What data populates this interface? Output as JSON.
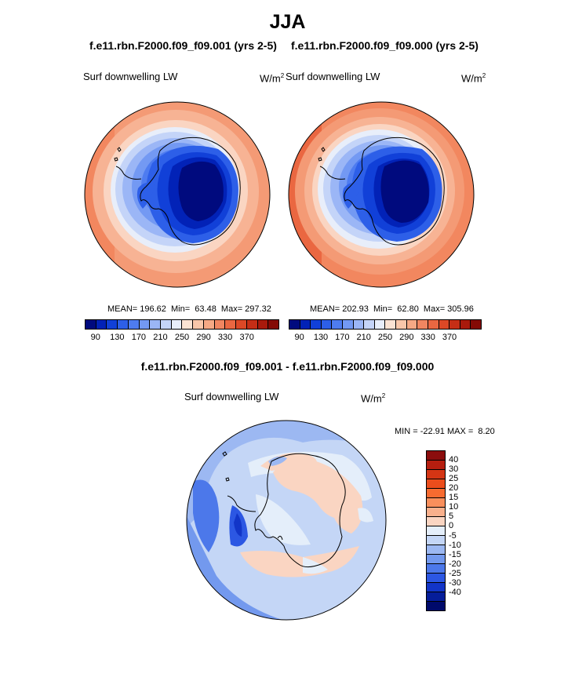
{
  "figure": {
    "season": "JJA",
    "panels": [
      {
        "title": "f.e11.rbn.F2000.f09_f09.001 (yrs 2-5)",
        "variable": "Surf downwelling LW",
        "units_base": "W/m",
        "units_exp": "2",
        "stats": "MEAN= 196.62  Min=  63.48  Max= 297.32"
      },
      {
        "title": "f.e11.rbn.F2000.f09_f09.000 (yrs 2-5)",
        "variable": "Surf downwelling LW",
        "units_base": "W/m",
        "units_exp": "2",
        "stats": "MEAN= 202.93  Min=  62.80  Max= 305.96"
      }
    ],
    "difference": {
      "title": "f.e11.rbn.F2000.f09_f09.001 - f.e11.rbn.F2000.f09_f09.000",
      "variable": "Surf downwelling LW",
      "units_base": "W/m",
      "units_exp": "2",
      "stats": "MIN = -22.91 MAX =  8.20"
    },
    "abs_colorbar": {
      "colors": [
        "#000a7e",
        "#0222b7",
        "#1140d8",
        "#2d5fe8",
        "#4e7cf0",
        "#7399f3",
        "#9bb6f6",
        "#c4d4f8",
        "#e8eefa",
        "#fbe3d3",
        "#f9c7aa",
        "#f6a985",
        "#f18661",
        "#ea6741",
        "#dc4826",
        "#c52e16",
        "#a91a0c",
        "#840a05"
      ],
      "labels": [
        "90",
        "130",
        "170",
        "210",
        "250",
        "290",
        "330",
        "370"
      ]
    },
    "diff_colorbar": {
      "colors": [
        "#8b0d0d",
        "#b51e0f",
        "#d43514",
        "#eb4d1c",
        "#f76b30",
        "#f98f5c",
        "#f9b08c",
        "#fad5c2",
        "#e4eefa",
        "#c4d6f6",
        "#9cb8f2",
        "#7399ee",
        "#4c78ea",
        "#2c57e3",
        "#1235c8",
        "#051d9a",
        "#000a6b"
      ],
      "labels": [
        "40",
        "30",
        "25",
        "20",
        "15",
        "10",
        "5",
        "0",
        "-5",
        "-10",
        "-15",
        "-20",
        "-25",
        "-30",
        "-40"
      ]
    }
  }
}
